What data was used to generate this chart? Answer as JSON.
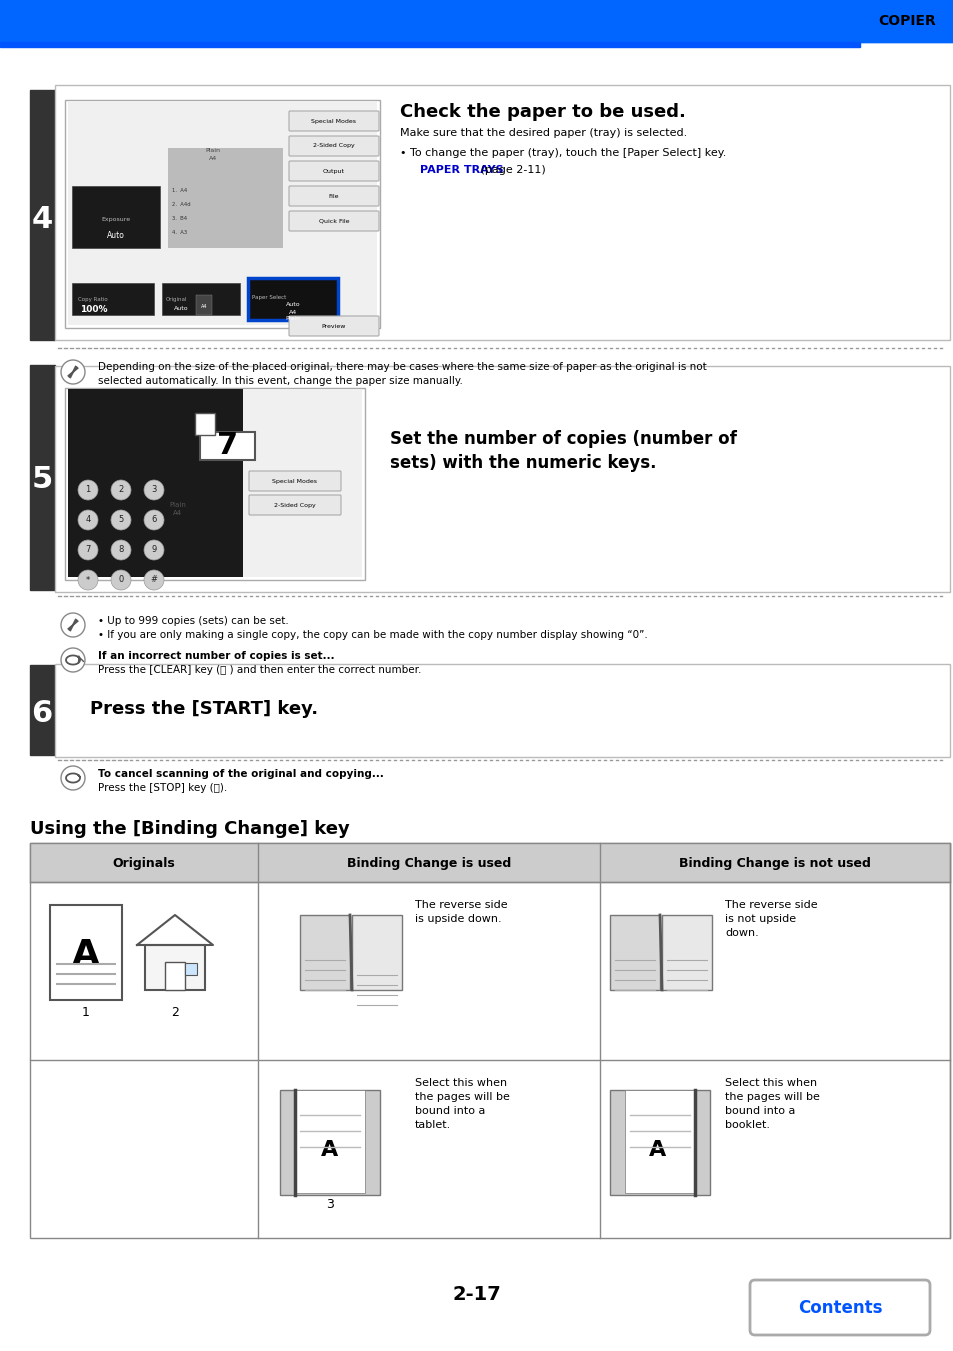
{
  "page_bg": "#ffffff",
  "header_bar_color": "#0066ff",
  "header_text": "COPIER",
  "header_text_color": "#000000",
  "step4_number": "4",
  "step5_number": "5",
  "step6_number": "6",
  "step4_title": "Check the paper to be used.",
  "step4_body1": "Make sure that the desired paper (tray) is selected.",
  "step4_body2": "• To change the paper (tray), touch the [Paper Select] key.",
  "step4_link": "PAPER TRAYS",
  "step4_link_suffix": " (page 2-11)",
  "step4_note": "Depending on the size of the placed original, there may be cases where the same size of paper as the original is not\nselected automatically. In this event, change the paper size manually.",
  "step5_title": "Set the number of copies (number of\nsets) with the numeric keys.",
  "step5_note1": "• Up to 999 copies (sets) can be set.",
  "step5_note2": "• If you are only making a single copy, the copy can be made with the copy number display showing “0”.",
  "step5_note3_bold": "If an incorrect number of copies is set...",
  "step5_note3_body": "Press the [CLEAR] key (Ⓒ ) and then enter the correct number.",
  "step6_title": "Press the [START] key.",
  "step6_note_bold": "To cancel scanning of the original and copying...",
  "step6_note_body": "Press the [STOP] key (Ⓢ).",
  "section_title": "Using the [Binding Change] key",
  "table_col1": "Originals",
  "table_col2": "Binding Change is used",
  "table_col3": "Binding Change is not used",
  "table_col2_text1": "The reverse side\nis upside down.",
  "table_col2_text2": "Select this when\nthe pages will be\nbound into a\ntablet.",
  "table_col3_text1": "The reverse side\nis not upside\ndown.",
  "table_col3_text2": "Select this when\nthe pages will be\nbound into a\nbooklet.",
  "page_number": "2-17",
  "contents_btn_text": "Contents",
  "sidebar_color": "#333333",
  "table_header_bg": "#cccccc",
  "link_color": "#0000cc",
  "blue_color": "#0055ff"
}
